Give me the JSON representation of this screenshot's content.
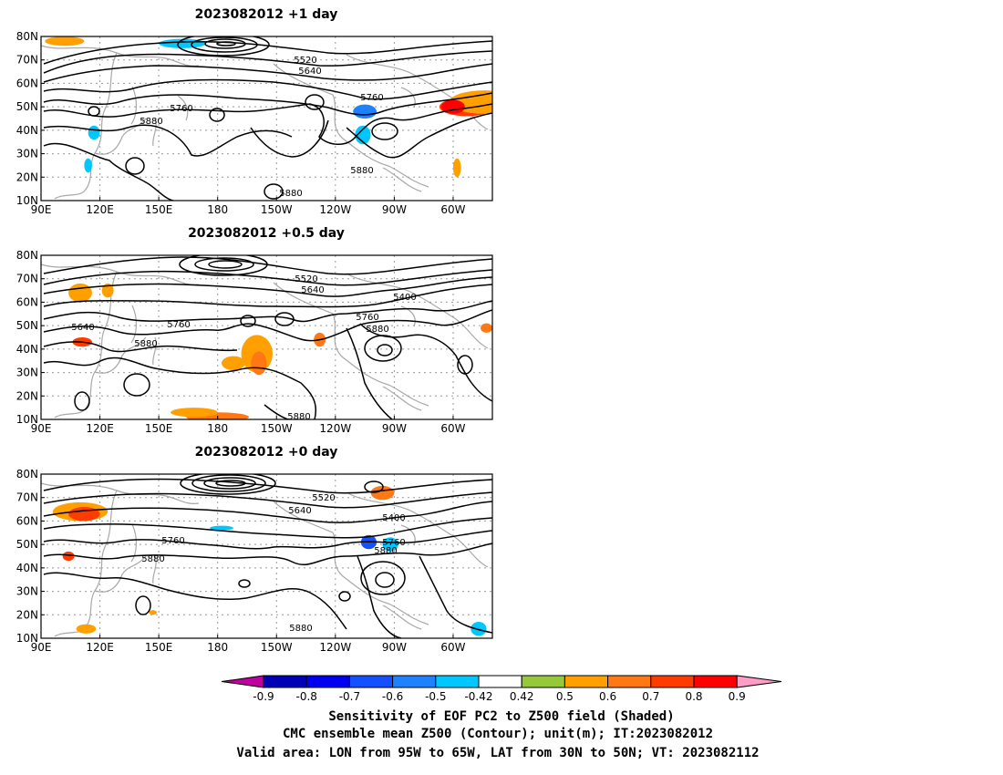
{
  "panels": [
    {
      "title": "2023082012  +1 day",
      "contour_labels": [
        "5520",
        "5640",
        "5760",
        "5760",
        "5880",
        "5880",
        "5880"
      ],
      "jet_lat": 68,
      "shading": [
        {
          "lon": 102,
          "lat": 78,
          "dl": 10,
          "dh": 2,
          "v": 0.5
        },
        {
          "lon": 162,
          "lat": 77,
          "dl": 12,
          "dh": 2,
          "v": -0.5
        },
        {
          "lon": 307,
          "lat": 50,
          "dl": 14,
          "dh": 4,
          "v": 0.7
        },
        {
          "lon": 316,
          "lat": 52,
          "dl": 18,
          "dh": 5,
          "v": 0.5
        },
        {
          "lon": 300,
          "lat": 50,
          "dl": 6,
          "dh": 3,
          "v": 0.8
        },
        {
          "lon": 255,
          "lat": 48,
          "dl": 6,
          "dh": 3,
          "v": -0.6
        },
        {
          "lon": 254,
          "lat": 38,
          "dl": 4,
          "dh": 4,
          "v": -0.5
        },
        {
          "lon": 117,
          "lat": 39,
          "dl": 3,
          "dh": 3,
          "v": -0.5
        },
        {
          "lon": 114,
          "lat": 25,
          "dl": 2,
          "dh": 3,
          "v": -0.5
        },
        {
          "lon": 302,
          "lat": 24,
          "dl": 2,
          "dh": 4,
          "v": 0.5
        }
      ]
    },
    {
      "title": "2023082012  +0.5 day",
      "contour_labels": [
        "5520",
        "5640",
        "5400",
        "5640",
        "5760",
        "5760",
        "5880",
        "5880",
        "5880"
      ],
      "jet_lat": 66,
      "shading": [
        {
          "lon": 110,
          "lat": 64,
          "dl": 6,
          "dh": 4,
          "v": 0.5
        },
        {
          "lon": 111,
          "lat": 43,
          "dl": 5,
          "dh": 2,
          "v": 0.7
        },
        {
          "lon": 200,
          "lat": 38,
          "dl": 8,
          "dh": 8,
          "v": 0.5
        },
        {
          "lon": 201,
          "lat": 34,
          "dl": 4,
          "dh": 5,
          "v": 0.6
        },
        {
          "lon": 188,
          "lat": 34,
          "dl": 6,
          "dh": 3,
          "v": 0.5
        },
        {
          "lon": 232,
          "lat": 44,
          "dl": 3,
          "dh": 3,
          "v": 0.6
        },
        {
          "lon": 180,
          "lat": 11,
          "dl": 16,
          "dh": 2,
          "v": 0.6
        },
        {
          "lon": 168,
          "lat": 13,
          "dl": 12,
          "dh": 2,
          "v": 0.5
        },
        {
          "lon": 317,
          "lat": 49,
          "dl": 3,
          "dh": 2,
          "v": 0.6
        },
        {
          "lon": 124,
          "lat": 65,
          "dl": 3,
          "dh": 3,
          "v": 0.5
        }
      ]
    },
    {
      "title": "2023082012  +0 day",
      "contour_labels": [
        "5520",
        "5640",
        "5400",
        "5760",
        "5760",
        "5880",
        "5880",
        "5880"
      ],
      "jet_lat": 67,
      "shading": [
        {
          "lon": 110,
          "lat": 64,
          "dl": 14,
          "dh": 4,
          "v": 0.5
        },
        {
          "lon": 112,
          "lat": 63,
          "dl": 8,
          "dh": 3,
          "v": 0.7
        },
        {
          "lon": 104,
          "lat": 45,
          "dl": 3,
          "dh": 2,
          "v": 0.7
        },
        {
          "lon": 264,
          "lat": 72,
          "dl": 6,
          "dh": 3,
          "v": 0.6
        },
        {
          "lon": 257,
          "lat": 51,
          "dl": 4,
          "dh": 3,
          "v": -0.7
        },
        {
          "lon": 268,
          "lat": 50,
          "dl": 4,
          "dh": 3,
          "v": -0.5
        },
        {
          "lon": 182,
          "lat": 57,
          "dl": 6,
          "dh": 1,
          "v": -0.5
        },
        {
          "lon": 313,
          "lat": 14,
          "dl": 4,
          "dh": 3,
          "v": -0.5
        },
        {
          "lon": 113,
          "lat": 14,
          "dl": 5,
          "dh": 2,
          "v": 0.5
        },
        {
          "lon": 147,
          "lat": 21,
          "dl": 2,
          "dh": 1,
          "v": 0.5
        }
      ]
    }
  ],
  "axes": {
    "lon_ticks": [
      "90E",
      "120E",
      "150E",
      "180",
      "150W",
      "120W",
      "90W",
      "60W"
    ],
    "lat_ticks": [
      "80N",
      "70N",
      "60N",
      "50N",
      "40N",
      "30N",
      "20N",
      "10N"
    ],
    "lon_values": [
      90,
      120,
      150,
      180,
      210,
      240,
      270,
      300
    ],
    "lat_values": [
      80,
      70,
      60,
      50,
      40,
      30,
      20,
      10
    ],
    "lon_range": [
      90,
      320
    ],
    "lat_range": [
      10,
      80
    ]
  },
  "colorbar": {
    "labels": [
      "-0.9",
      "-0.8",
      "-0.7",
      "-0.6",
      "-0.5",
      "-0.42",
      "0.42",
      "0.5",
      "0.6",
      "0.7",
      "0.8",
      "0.9"
    ],
    "colors": [
      "#c000a0",
      "#0000b4",
      "#0000f0",
      "#1450ff",
      "#1e82ff",
      "#00c8ff",
      "#ffffff",
      "#96c83c",
      "#ffa000",
      "#ff7814",
      "#ff3c00",
      "#ff0000",
      "#ff9cc8"
    ]
  },
  "caption": [
    "Sensitivity of EOF PC2 to Z500 field (Shaded)",
    "CMC ensemble mean Z500 (Contour); unit(m); IT:2023082012",
    "Valid area: LON from 95W to 65W, LAT from 30N to 50N; VT: 2023082112"
  ]
}
